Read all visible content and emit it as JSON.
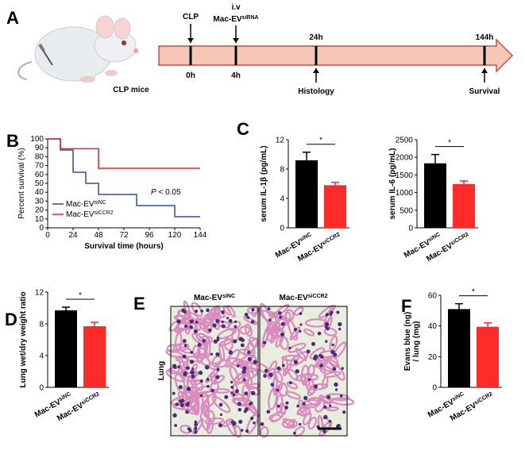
{
  "panel_letters": [
    "A",
    "B",
    "C",
    "D",
    "E",
    "F"
  ],
  "timeline": {
    "subject": "CLP mice",
    "times": [
      "0h",
      "4h",
      "24h",
      "144h"
    ],
    "events": [
      {
        "text": "CLP"
      },
      {
        "text": "i.v",
        "text2": "Mac-EV",
        "sup": "siRNA"
      },
      {
        "text": "Histology"
      },
      {
        "text": "Survival"
      }
    ]
  },
  "histology": {
    "labels": [
      {
        "text": "Mac-EV",
        "sup": "siNC"
      },
      {
        "text": "Mac-EV",
        "sup": "siCCR2"
      }
    ],
    "tissue": "Lung"
  },
  "chart_data": [
    {
      "type": "line",
      "xlabel": "Survival time (hours)",
      "ylabel": "Percent survival (%)",
      "annotation": {
        "italic": "P",
        "text": " < 0.05"
      },
      "xlim": [
        0,
        144
      ],
      "xticks": [
        0,
        24,
        48,
        72,
        96,
        120,
        144
      ],
      "ylim": [
        0,
        100
      ],
      "yticks": [
        0,
        10,
        20,
        30,
        40,
        50,
        60,
        70,
        80,
        90,
        100
      ],
      "series": [
        {
          "name": "Mac-EV",
          "name_sup": "siNC",
          "color": "#2e4e9e",
          "x": [
            0,
            12,
            12,
            24,
            24,
            36,
            36,
            48,
            48,
            84,
            84,
            120,
            120,
            144
          ],
          "values": [
            100,
            100,
            87.5,
            87.5,
            62.5,
            62.5,
            50,
            50,
            37.5,
            37.5,
            25,
            25,
            12.5,
            12.5
          ]
        },
        {
          "name": "Mac-EV",
          "name_sup": "siCCR2",
          "color": "#e0262b",
          "x": [
            0,
            12,
            12,
            48,
            48,
            144
          ],
          "values": [
            100,
            100,
            89,
            89,
            67,
            67
          ]
        }
      ]
    },
    {
      "type": "bar",
      "ylabel": "serum IL-1β (pg/mL)",
      "significance": "*",
      "categories": [
        {
          "text": "Mac-EV",
          "sup": "siNC"
        },
        {
          "text": "Mac-EV",
          "sup": "siCCR2"
        }
      ],
      "values": [
        9.2,
        5.8
      ],
      "errors": [
        1.1,
        0.4
      ],
      "colors": [
        "#000000",
        "#ff2a2a"
      ],
      "ylim": [
        0,
        12
      ],
      "yticks": [
        0,
        4,
        8,
        12
      ]
    },
    {
      "type": "bar",
      "ylabel": "serum IL-6 (pg/mL)",
      "significance": "*",
      "categories": [
        {
          "text": "Mac-EV",
          "sup": "siNC"
        },
        {
          "text": "Mac-EV",
          "sup": "siCCR2"
        }
      ],
      "values": [
        1830,
        1240
      ],
      "errors": [
        250,
        90
      ],
      "colors": [
        "#000000",
        "#ff2a2a"
      ],
      "ylim": [
        0,
        2500
      ],
      "yticks": [
        0,
        500,
        1000,
        1500,
        2000,
        2500
      ]
    },
    {
      "type": "bar",
      "ylabel": "Lung wet/dry weight ratio",
      "significance": "*",
      "categories": [
        {
          "text": "Mac-EV",
          "sup": "siNC"
        },
        {
          "text": "Mac-EV",
          "sup": "siCCR2"
        }
      ],
      "values": [
        9.7,
        7.7
      ],
      "errors": [
        0.4,
        0.5
      ],
      "colors": [
        "#000000",
        "#ff2a2a"
      ],
      "ylim": [
        0,
        12
      ],
      "yticks": [
        0,
        4,
        8,
        12
      ]
    },
    {
      "type": "bar",
      "ylabel": [
        "Evans blue (ng)",
        "/ lung (mg)"
      ],
      "significance": "*",
      "categories": [
        {
          "text": "Mac-EV",
          "sup": "siNC"
        },
        {
          "text": "Mac-EV",
          "sup": "siCCR2"
        }
      ],
      "values": [
        51,
        39.5
      ],
      "errors": [
        3.5,
        2.5
      ],
      "colors": [
        "#000000",
        "#ff2a2a"
      ],
      "ylim": [
        0,
        60
      ],
      "yticks": [
        0,
        20,
        40,
        60
      ]
    }
  ]
}
